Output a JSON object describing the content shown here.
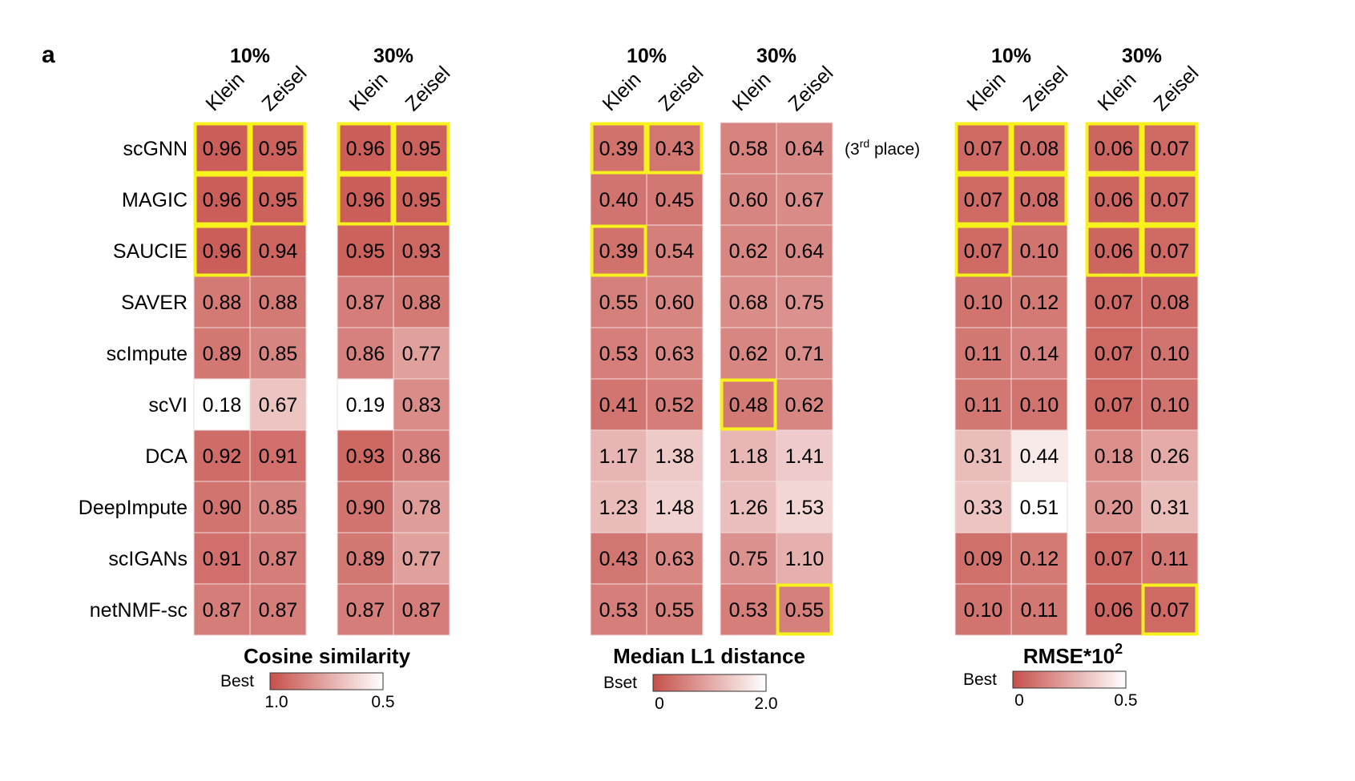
{
  "figure_label": "a",
  "rows": [
    "scGNN",
    "MAGIC",
    "SAUCIE",
    "SAVER",
    "scImpute",
    "scVI",
    "DCA",
    "DeepImpute",
    "scIGANs",
    "netNMF-sc"
  ],
  "colors": {
    "best": "#c6504a",
    "worst": "#ffffff",
    "highlight": "#f7f21b"
  },
  "chart_data": [
    {
      "type": "heatmap",
      "title": "Cosine similarity",
      "legend": {
        "label": "Best",
        "best_value": 1.0,
        "worst_value": 0.5,
        "best_text": "1.0",
        "worst_text": "0.5"
      },
      "groups": [
        {
          "label": "10%",
          "columns": [
            {
              "name": "Klein",
              "values": [
                "0.96",
                "0.96",
                "0.96",
                "0.88",
                "0.89",
                "0.18",
                "0.92",
                "0.90",
                "0.91",
                "0.87"
              ],
              "highlight": [
                true,
                true,
                true,
                false,
                false,
                false,
                false,
                false,
                false,
                false
              ]
            },
            {
              "name": "Zeisel",
              "values": [
                "0.95",
                "0.95",
                "0.94",
                "0.88",
                "0.85",
                "0.67",
                "0.91",
                "0.85",
                "0.87",
                "0.87"
              ],
              "highlight": [
                true,
                true,
                false,
                false,
                false,
                false,
                false,
                false,
                false,
                false
              ]
            }
          ]
        },
        {
          "label": "30%",
          "columns": [
            {
              "name": "Klein",
              "values": [
                "0.96",
                "0.96",
                "0.95",
                "0.87",
                "0.86",
                "0.19",
                "0.93",
                "0.90",
                "0.89",
                "0.87"
              ],
              "highlight": [
                true,
                true,
                false,
                false,
                false,
                false,
                false,
                false,
                false,
                false
              ]
            },
            {
              "name": "Zeisel",
              "values": [
                "0.95",
                "0.95",
                "0.93",
                "0.88",
                "0.77",
                "0.83",
                "0.86",
                "0.78",
                "0.77",
                "0.87"
              ],
              "highlight": [
                true,
                true,
                false,
                false,
                false,
                false,
                false,
                false,
                false,
                false
              ]
            }
          ]
        }
      ]
    },
    {
      "type": "heatmap",
      "title": "Median L1 distance",
      "note": "(3rd place)",
      "legend": {
        "label": "Bset",
        "best_value": 0,
        "worst_value": 2.0,
        "best_text": "0",
        "worst_text": "2.0"
      },
      "groups": [
        {
          "label": "10%",
          "columns": [
            {
              "name": "Klein",
              "values": [
                "0.39",
                "0.40",
                "0.39",
                "0.55",
                "0.53",
                "0.41",
                "1.17",
                "1.23",
                "0.43",
                "0.53"
              ],
              "highlight": [
                true,
                false,
                true,
                false,
                false,
                false,
                false,
                false,
                false,
                false
              ]
            },
            {
              "name": "Zeisel",
              "values": [
                "0.43",
                "0.45",
                "0.54",
                "0.60",
                "0.63",
                "0.52",
                "1.38",
                "1.48",
                "0.63",
                "0.55"
              ],
              "highlight": [
                true,
                false,
                false,
                false,
                false,
                false,
                false,
                false,
                false,
                false
              ]
            }
          ]
        },
        {
          "label": "30%",
          "columns": [
            {
              "name": "Klein",
              "values": [
                "0.58",
                "0.60",
                "0.62",
                "0.68",
                "0.62",
                "0.48",
                "1.18",
                "1.26",
                "0.75",
                "0.53"
              ],
              "highlight": [
                false,
                false,
                false,
                false,
                false,
                true,
                false,
                false,
                false,
                false
              ]
            },
            {
              "name": "Zeisel",
              "values": [
                "0.64",
                "0.67",
                "0.64",
                "0.75",
                "0.71",
                "0.62",
                "1.41",
                "1.53",
                "1.10",
                "0.55"
              ],
              "highlight": [
                false,
                false,
                false,
                false,
                false,
                false,
                false,
                false,
                false,
                true
              ]
            }
          ]
        }
      ]
    },
    {
      "type": "heatmap",
      "title": "RMSE*10",
      "title_sup": "2",
      "legend": {
        "label": "Best",
        "best_value": 0,
        "worst_value": 0.5,
        "best_text": "0",
        "worst_text": "0.5"
      },
      "groups": [
        {
          "label": "10%",
          "columns": [
            {
              "name": "Klein",
              "values": [
                "0.07",
                "0.07",
                "0.07",
                "0.10",
                "0.11",
                "0.11",
                "0.31",
                "0.33",
                "0.09",
                "0.10"
              ],
              "highlight": [
                true,
                true,
                true,
                false,
                false,
                false,
                false,
                false,
                false,
                false
              ]
            },
            {
              "name": "Zeisel",
              "values": [
                "0.08",
                "0.08",
                "0.10",
                "0.12",
                "0.14",
                "0.10",
                "0.44",
                "0.51",
                "0.12",
                "0.11"
              ],
              "highlight": [
                true,
                true,
                false,
                false,
                false,
                false,
                false,
                false,
                false,
                false
              ]
            }
          ]
        },
        {
          "label": "30%",
          "columns": [
            {
              "name": "Klein",
              "values": [
                "0.06",
                "0.06",
                "0.06",
                "0.07",
                "0.07",
                "0.07",
                "0.18",
                "0.20",
                "0.07",
                "0.06"
              ],
              "highlight": [
                true,
                true,
                true,
                false,
                false,
                false,
                false,
                false,
                false,
                false
              ]
            },
            {
              "name": "Zeisel",
              "values": [
                "0.07",
                "0.07",
                "0.07",
                "0.08",
                "0.10",
                "0.10",
                "0.26",
                "0.31",
                "0.11",
                "0.07"
              ],
              "highlight": [
                true,
                true,
                true,
                false,
                false,
                false,
                false,
                false,
                false,
                true
              ]
            }
          ]
        }
      ]
    }
  ]
}
